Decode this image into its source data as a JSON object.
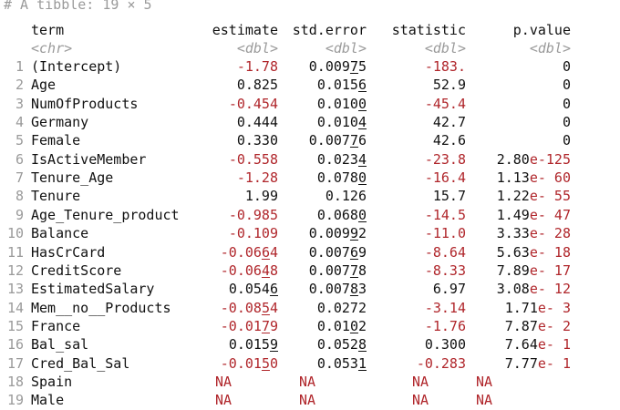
{
  "header": "# A tibble: 19 × 5",
  "columns": [
    "term",
    "estimate",
    "std.error",
    "statistic",
    "p.value"
  ],
  "types": [
    "<chr>",
    "<dbl>",
    "<dbl>",
    "<dbl>",
    "<dbl>"
  ],
  "rows": [
    {
      "n": "1",
      "term": "(Intercept)",
      "est": "-1.78",
      "se": "0.00975",
      "st": "-183.",
      "pv": "0"
    },
    {
      "n": "2",
      "term": "Age",
      "est": "0.825",
      "se": "0.0156",
      "st": "52.9",
      "pv": "0"
    },
    {
      "n": "3",
      "term": "NumOfProducts",
      "est": "-0.454",
      "se": "0.0100",
      "st": "-45.4",
      "pv": "0"
    },
    {
      "n": "4",
      "term": "Germany",
      "est": "0.444",
      "se": "0.0104",
      "st": "42.7",
      "pv": "0"
    },
    {
      "n": "5",
      "term": "Female",
      "est": "0.330",
      "se": "0.00776",
      "st": "42.6",
      "pv": "0"
    },
    {
      "n": "6",
      "term": "IsActiveMember",
      "est": "-0.558",
      "se": "0.0234",
      "st": "-23.8",
      "pv": "2.80e-125"
    },
    {
      "n": "7",
      "term": "Tenure_Age",
      "est": "-1.28",
      "se": "0.0780",
      "st": "-16.4",
      "pv": "1.13e- 60"
    },
    {
      "n": "8",
      "term": "Tenure",
      "est": "1.99",
      "se": "0.126",
      "st": "15.7",
      "pv": "1.22e- 55"
    },
    {
      "n": "9",
      "term": "Age_Tenure_product",
      "est": "-0.985",
      "se": "0.0680",
      "st": "-14.5",
      "pv": "1.49e- 47"
    },
    {
      "n": "10",
      "term": "Balance",
      "est": "-0.109",
      "se": "0.00992",
      "st": "-11.0",
      "pv": "3.33e- 28"
    },
    {
      "n": "11",
      "term": "HasCrCard",
      "est": "-0.0664",
      "se": "0.00769",
      "st": "-8.64",
      "pv": "5.63e- 18"
    },
    {
      "n": "12",
      "term": "CreditScore",
      "est": "-0.0648",
      "se": "0.00778",
      "st": "-8.33",
      "pv": "7.89e- 17"
    },
    {
      "n": "13",
      "term": "EstimatedSalary",
      "est": "0.0546",
      "se": "0.00783",
      "st": "6.97",
      "pv": "3.08e- 12"
    },
    {
      "n": "14",
      "term": "Mem__no__Products",
      "est": "-0.0854",
      "se": "0.0272",
      "st": "-3.14",
      "pv": "1.71e- 3"
    },
    {
      "n": "15",
      "term": "France",
      "est": "-0.0179",
      "se": "0.0102",
      "st": "-1.76",
      "pv": "7.87e- 2"
    },
    {
      "n": "16",
      "term": "Bal_sal",
      "est": "0.0159",
      "se": "0.0528",
      "st": "0.300",
      "pv": "7.64e- 1"
    },
    {
      "n": "17",
      "term": "Cred_Bal_Sal",
      "est": "-0.0150",
      "se": "0.0531",
      "st": "-0.283",
      "pv": "7.77e- 1"
    },
    {
      "n": "18",
      "term": "Spain",
      "est": "NA",
      "se": "NA",
      "st": "NA",
      "pv": "NA"
    },
    {
      "n": "19",
      "term": "Male",
      "est": "NA",
      "se": "NA",
      "st": "NA",
      "pv": "NA"
    }
  ]
}
